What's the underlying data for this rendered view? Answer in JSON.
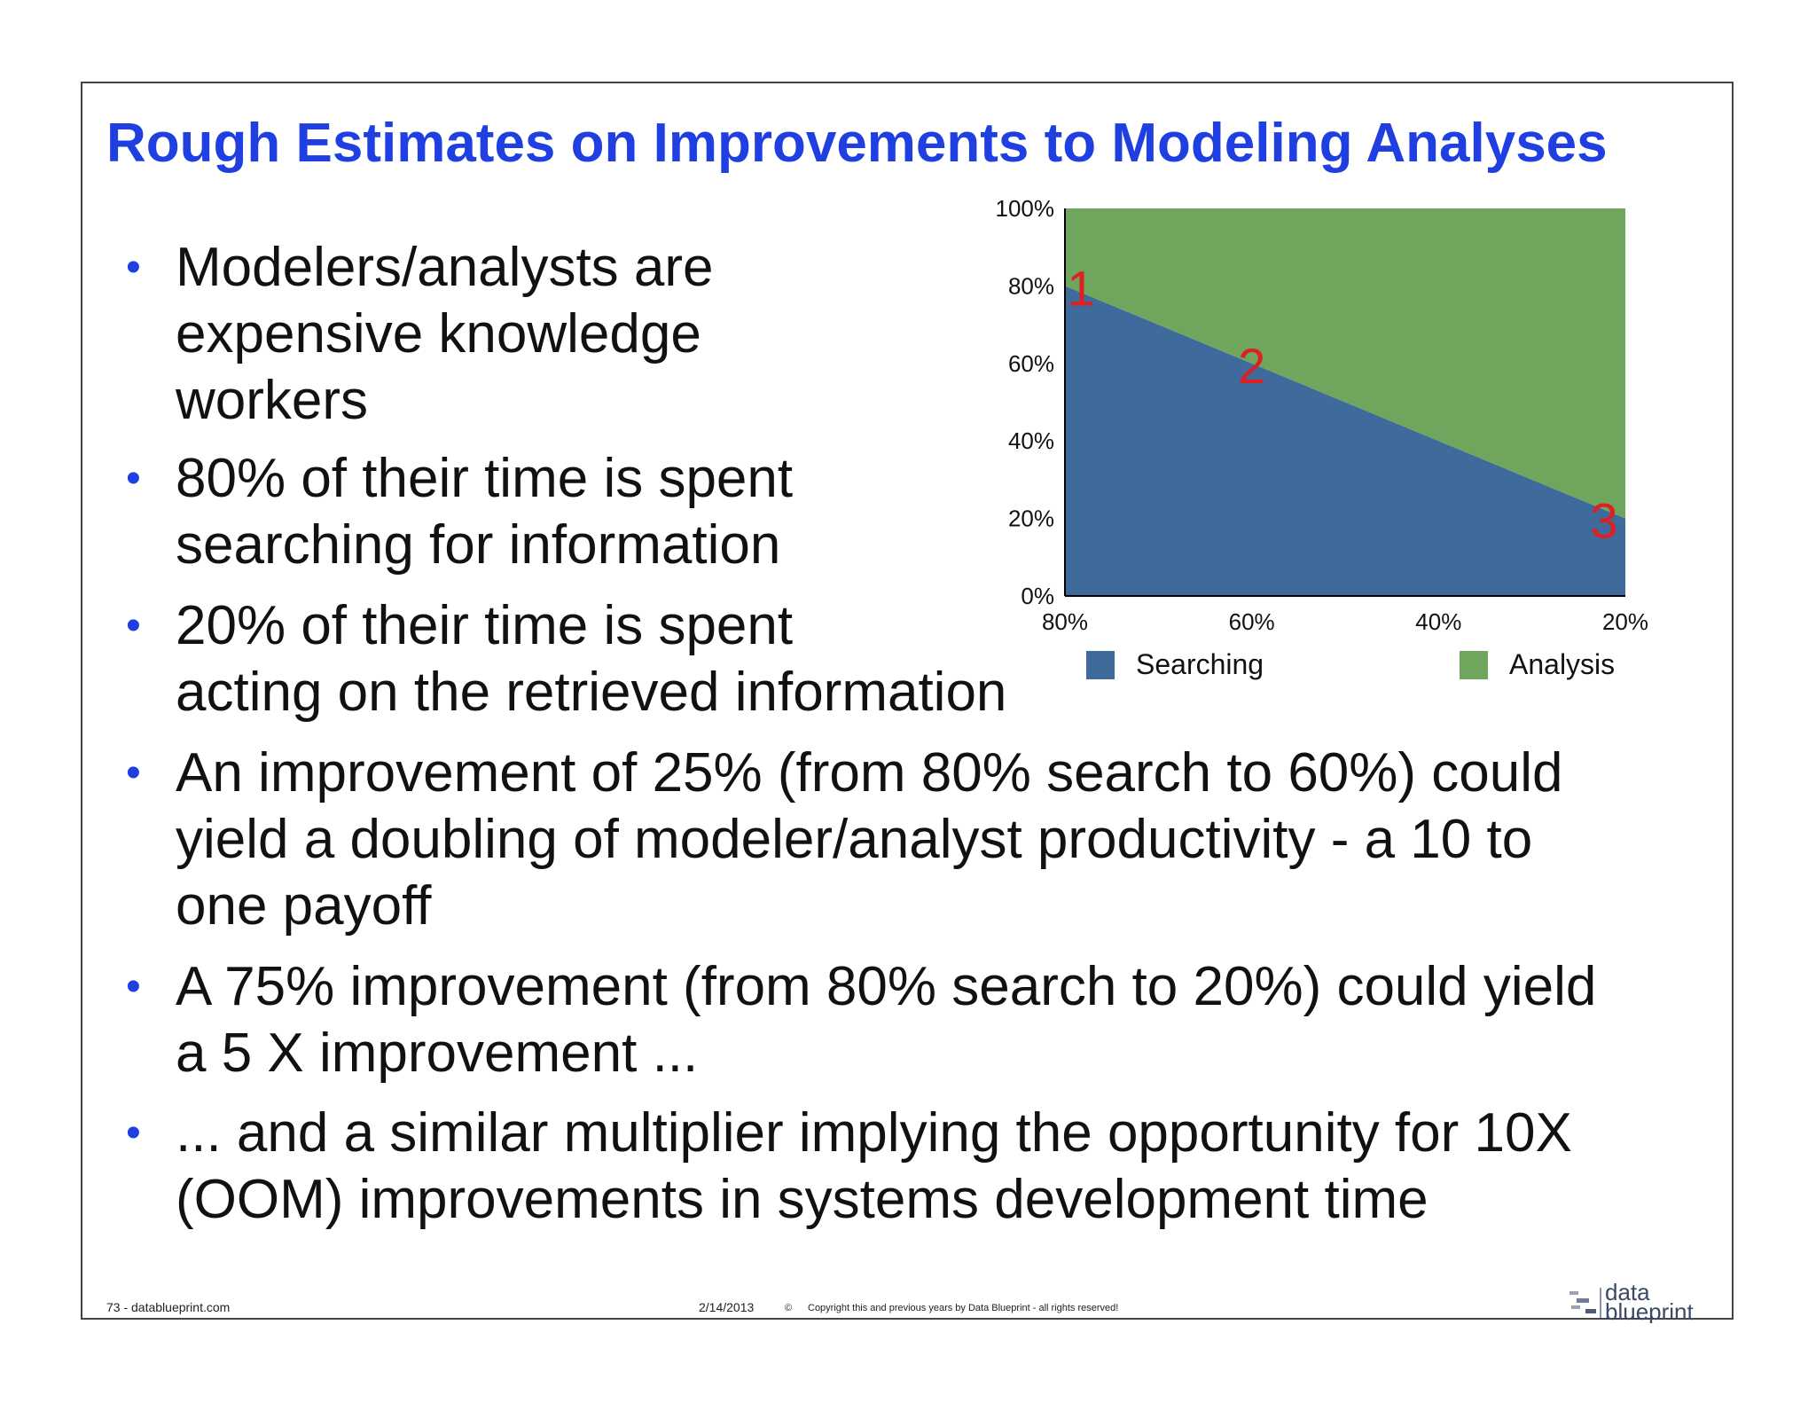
{
  "slide": {
    "title": "Rough Estimates on Improvements to Modeling Analyses",
    "bullets": [
      {
        "lines": [
          "Modelers/analysts are",
          "expensive knowledge",
          "workers"
        ]
      },
      {
        "lines": [
          "80% of their time is spent",
          "searching for information"
        ]
      },
      {
        "lines": [
          "20% of their time is spent",
          "acting on the retrieved information"
        ]
      },
      {
        "lines": [
          "An improvement of 25% (from 80% search to 60%) could",
          "yield a doubling of modeler/analyst productivity - a 10 to",
          "one payoff"
        ]
      },
      {
        "lines": [
          "A 75% improvement (from 80% search to 20%) could yield",
          "a 5 X improvement ..."
        ]
      },
      {
        "lines": [
          "... and a similar multiplier implying the opportunity for 10X",
          "(OOM) improvements in systems development time"
        ]
      }
    ],
    "bullet_symbol": "•"
  },
  "chart_data": {
    "type": "area",
    "stacked": true,
    "x_categories": [
      "80%",
      "60%",
      "40%",
      "20%"
    ],
    "series": [
      {
        "name": "Searching",
        "values": [
          80,
          60,
          40,
          20
        ],
        "color": "#3e6a9c"
      },
      {
        "name": "Analysis",
        "values": [
          20,
          40,
          60,
          80
        ],
        "color": "#6fa55c"
      }
    ],
    "y_ticks": [
      "0%",
      "20%",
      "40%",
      "60%",
      "80%",
      "100%"
    ],
    "ylim": [
      0,
      100
    ],
    "grid": false,
    "legend_position": "bottom",
    "annotations": [
      {
        "label": "1",
        "x_index": 0,
        "value": 80,
        "color": "#e02020"
      },
      {
        "label": "2",
        "x_index": 1,
        "value": 60,
        "color": "#e02020"
      },
      {
        "label": "3",
        "x_index": 3,
        "value": 20,
        "color": "#e02020"
      }
    ]
  },
  "footer": {
    "page": "73 -  datablueprint.com",
    "date": "2/14/2013",
    "copyright_symbol": "©",
    "copyright_text": "Copyright this and previous years by Data Blueprint  - all rights reserved!"
  },
  "logo": {
    "line1": "data",
    "line2": "blueprint"
  }
}
